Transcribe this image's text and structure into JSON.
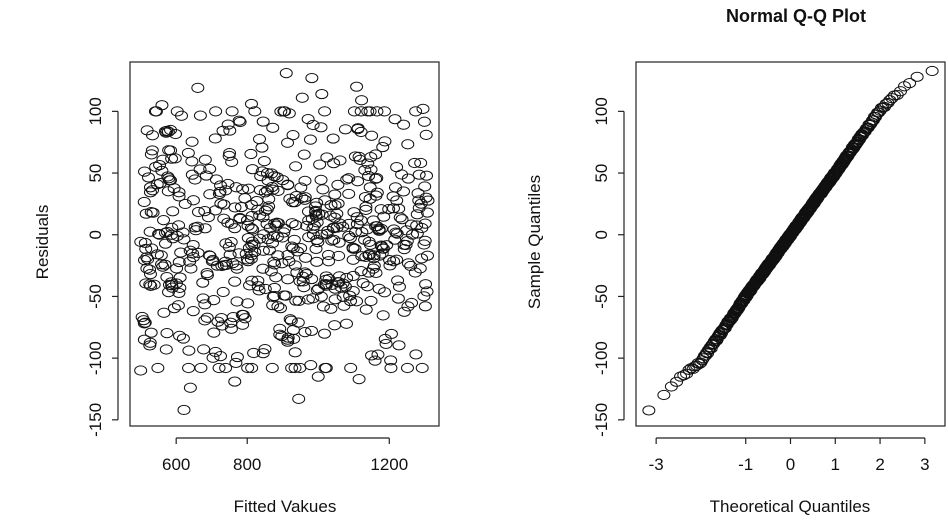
{
  "chart_data": [
    {
      "type": "scatter",
      "title": "",
      "xlabel": "Fitted Vakues",
      "ylabel": "Residuals",
      "xlim": [
        470,
        1340
      ],
      "ylim": [
        -155,
        140
      ],
      "xticks": [
        600,
        800,
        1200
      ],
      "xtick_labels": [
        "600",
        "800",
        "1200"
      ],
      "yticks": [
        -150,
        -100,
        -50,
        0,
        50,
        100
      ],
      "ytick_labels": [
        "-150",
        "-100",
        "-50",
        "0",
        "50",
        "100"
      ],
      "grid": false,
      "legend": "none",
      "marker": "open-circle",
      "point_count": 640,
      "residual_sd": 50,
      "points": [
        [
          910,
          131
        ],
        [
          982,
          127
        ],
        [
          661,
          119
        ],
        [
          1108,
          120
        ],
        [
          1010,
          114
        ],
        [
          955,
          111
        ],
        [
          560,
          105
        ],
        [
          812,
          106
        ],
        [
          1122,
          109
        ],
        [
          1295,
          102
        ],
        [
          622,
          -142
        ],
        [
          640,
          -124
        ],
        [
          765,
          -119
        ],
        [
          945,
          -133
        ],
        [
          1115,
          -117
        ],
        [
          500,
          -110
        ],
        [
          1000,
          -115
        ],
        [
          1160,
          -102
        ],
        [
          1275,
          -97
        ],
        [
          845,
          -96
        ]
      ]
    },
    {
      "type": "scatter",
      "title": "Normal Q-Q Plot",
      "xlabel": "Theoretical Quantiles",
      "ylabel": "Sample Quantiles",
      "xlim": [
        -3.45,
        3.45
      ],
      "ylim": [
        -155,
        140
      ],
      "xticks": [
        -3,
        -1,
        0,
        1,
        2,
        3
      ],
      "xtick_labels": [
        "-3",
        "-1",
        "0",
        "1",
        "2",
        "3"
      ],
      "yticks": [
        -150,
        -100,
        -50,
        0,
        50,
        100
      ],
      "ytick_labels": [
        "-150",
        "-100",
        "-50",
        "0",
        "50",
        "100"
      ],
      "grid": false,
      "legend": "none",
      "marker": "open-circle",
      "point_count": 640,
      "sample_sd": 50,
      "points": [
        [
          -3.17,
          -142
        ],
        [
          -2.9,
          -134
        ],
        [
          -2.7,
          -124
        ],
        [
          -2.5,
          -117
        ],
        [
          -2.0,
          -103
        ],
        [
          -1.5,
          -77
        ],
        [
          -1.0,
          -50
        ],
        [
          -0.5,
          -25
        ],
        [
          0,
          0
        ],
        [
          0.5,
          25
        ],
        [
          1.0,
          50
        ],
        [
          1.5,
          76
        ],
        [
          2.0,
          101
        ],
        [
          2.5,
          118
        ],
        [
          2.8,
          128
        ],
        [
          3.17,
          133
        ]
      ]
    }
  ]
}
